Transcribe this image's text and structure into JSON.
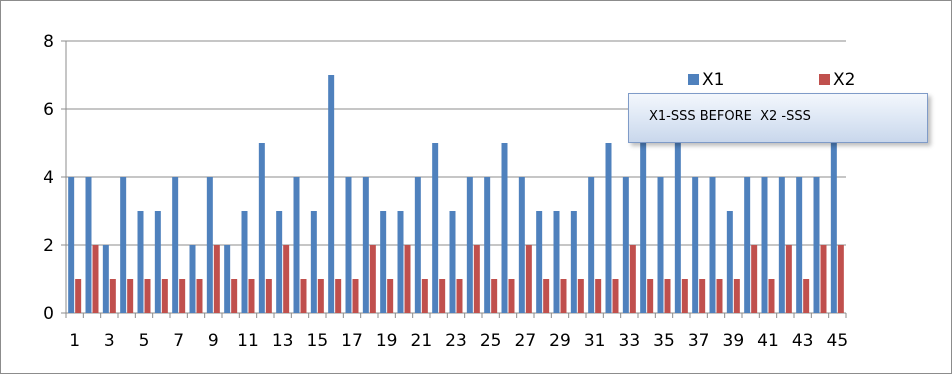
{
  "chart_data": {
    "type": "bar",
    "title": "",
    "xlabel": "",
    "ylabel": "",
    "ylim": [
      0,
      8
    ],
    "yticks": [
      0,
      2,
      4,
      6,
      8
    ],
    "grid": true,
    "legend_position": "top-right",
    "categories": [
      "1",
      "2",
      "3",
      "4",
      "5",
      "6",
      "7",
      "8",
      "9",
      "10",
      "11",
      "12",
      "13",
      "14",
      "15",
      "16",
      "17",
      "18",
      "19",
      "20",
      "21",
      "22",
      "23",
      "24",
      "25",
      "26",
      "27",
      "28",
      "29",
      "30",
      "31",
      "32",
      "33",
      "34",
      "35",
      "36",
      "37",
      "38",
      "39",
      "40",
      "41",
      "42",
      "43",
      "44",
      "45"
    ],
    "xtick_labels": [
      "1",
      "3",
      "5",
      "7",
      "9",
      "11",
      "13",
      "15",
      "17",
      "19",
      "21",
      "23",
      "25",
      "27",
      "29",
      "31",
      "33",
      "35",
      "37",
      "39",
      "41",
      "43",
      "45"
    ],
    "series": [
      {
        "name": "X1",
        "color": "#4f81bd",
        "values": [
          4,
          4,
          2,
          4,
          3,
          3,
          4,
          2,
          4,
          2,
          3,
          5,
          3,
          4,
          3,
          7,
          4,
          4,
          3,
          3,
          4,
          5,
          3,
          4,
          4,
          5,
          4,
          3,
          3,
          3,
          4,
          5,
          4,
          5,
          4,
          5,
          4,
          4,
          3,
          4,
          4,
          4,
          4,
          4,
          5
        ]
      },
      {
        "name": "X2",
        "color": "#c0504d",
        "values": [
          1,
          2,
          1,
          1,
          1,
          1,
          1,
          1,
          2,
          1,
          1,
          1,
          2,
          1,
          1,
          1,
          1,
          2,
          1,
          2,
          1,
          1,
          1,
          2,
          1,
          1,
          2,
          1,
          1,
          1,
          1,
          1,
          2,
          1,
          1,
          1,
          1,
          1,
          1,
          2,
          1,
          2,
          1,
          2,
          2
        ]
      }
    ],
    "annotation": "X1-SSS BEFORE  X2 -SSS"
  }
}
